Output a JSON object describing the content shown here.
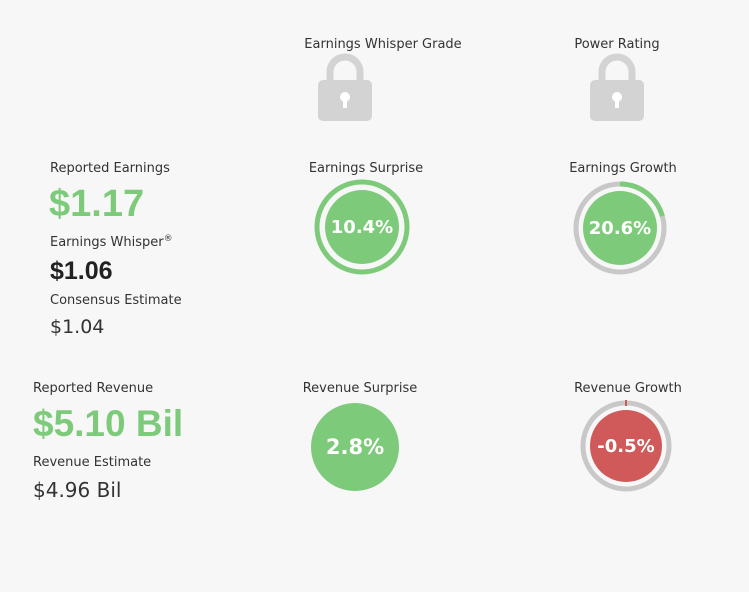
{
  "grades": {
    "whisper_grade": {
      "label": "Earnings Whisper Grade"
    },
    "power_rating": {
      "label": "Power Rating"
    }
  },
  "earnings": {
    "reported": {
      "label": "Reported Earnings",
      "value": "$1.17"
    },
    "whisper": {
      "label": "Earnings Whisper",
      "mark": "®",
      "value": "$1.06"
    },
    "consensus": {
      "label": "Consensus Estimate",
      "value": "$1.04"
    },
    "surprise": {
      "label": "Earnings Surprise",
      "value": "10.4%"
    },
    "growth": {
      "label": "Earnings Growth",
      "value": "20.6%"
    }
  },
  "revenue": {
    "reported": {
      "label": "Reported Revenue",
      "value": "$5.10 Bil"
    },
    "estimate": {
      "label": "Revenue Estimate",
      "value": "$4.96 Bil"
    },
    "surprise": {
      "label": "Revenue Surprise",
      "value": "2.8%"
    },
    "growth": {
      "label": "Revenue Growth",
      "value": "-0.5%"
    }
  }
}
